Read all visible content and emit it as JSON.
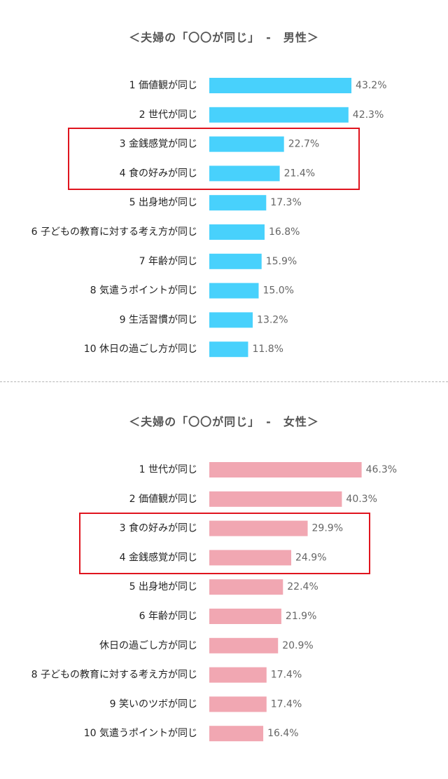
{
  "chart_data": [
    {
      "type": "bar",
      "orientation": "horizontal",
      "title": "＜夫婦の「〇〇が同じ」　-　男性＞",
      "categories": [
        "1 価値観が同じ",
        "2 世代が同じ",
        "3 金銭感覚が同じ",
        "4 食の好みが同じ",
        "5 出身地が同じ",
        "6 子どもの教育に対する考え方が同じ",
        "7 年齢が同じ",
        "8 気遣うポイントが同じ",
        "9 生活習慣が同じ",
        "10 休日の過ごし方が同じ"
      ],
      "values": [
        43.2,
        42.3,
        22.7,
        21.4,
        17.3,
        16.8,
        15.9,
        15.0,
        13.2,
        11.8
      ],
      "value_labels": [
        "43.2%",
        "42.3%",
        "22.7%",
        "21.4%",
        "17.3%",
        "16.8%",
        "15.9%",
        "15.0%",
        "13.2%",
        "11.8%"
      ],
      "bar_color": "#48d1fc",
      "highlight_color": "#e0141e",
      "highlighted_rows": [
        2,
        3
      ],
      "xlim": [
        0,
        50
      ],
      "grid": false
    },
    {
      "type": "bar",
      "orientation": "horizontal",
      "title": "＜夫婦の「〇〇が同じ」　-　女性＞",
      "categories": [
        "1 世代が同じ",
        "2 価値観が同じ",
        "3 食の好みが同じ",
        "4 金銭感覚が同じ",
        "5 出身地が同じ",
        "6 年齢が同じ",
        "休日の過ごし方が同じ",
        "8 子どもの教育に対する考え方が同じ",
        "9 笑いのツボが同じ",
        "10 気遣うポイントが同じ"
      ],
      "values": [
        46.3,
        40.3,
        29.9,
        24.9,
        22.4,
        21.9,
        20.9,
        17.4,
        17.4,
        16.4
      ],
      "value_labels": [
        "46.3%",
        "40.3%",
        "29.9%",
        "24.9%",
        "22.4%",
        "21.9%",
        "20.9%",
        "17.4%",
        "17.4%",
        "16.4%"
      ],
      "bar_color": "#f1a7b2",
      "highlight_color": "#e0141e",
      "highlighted_rows": [
        2,
        3
      ],
      "xlim": [
        0,
        50
      ],
      "grid": false
    }
  ]
}
